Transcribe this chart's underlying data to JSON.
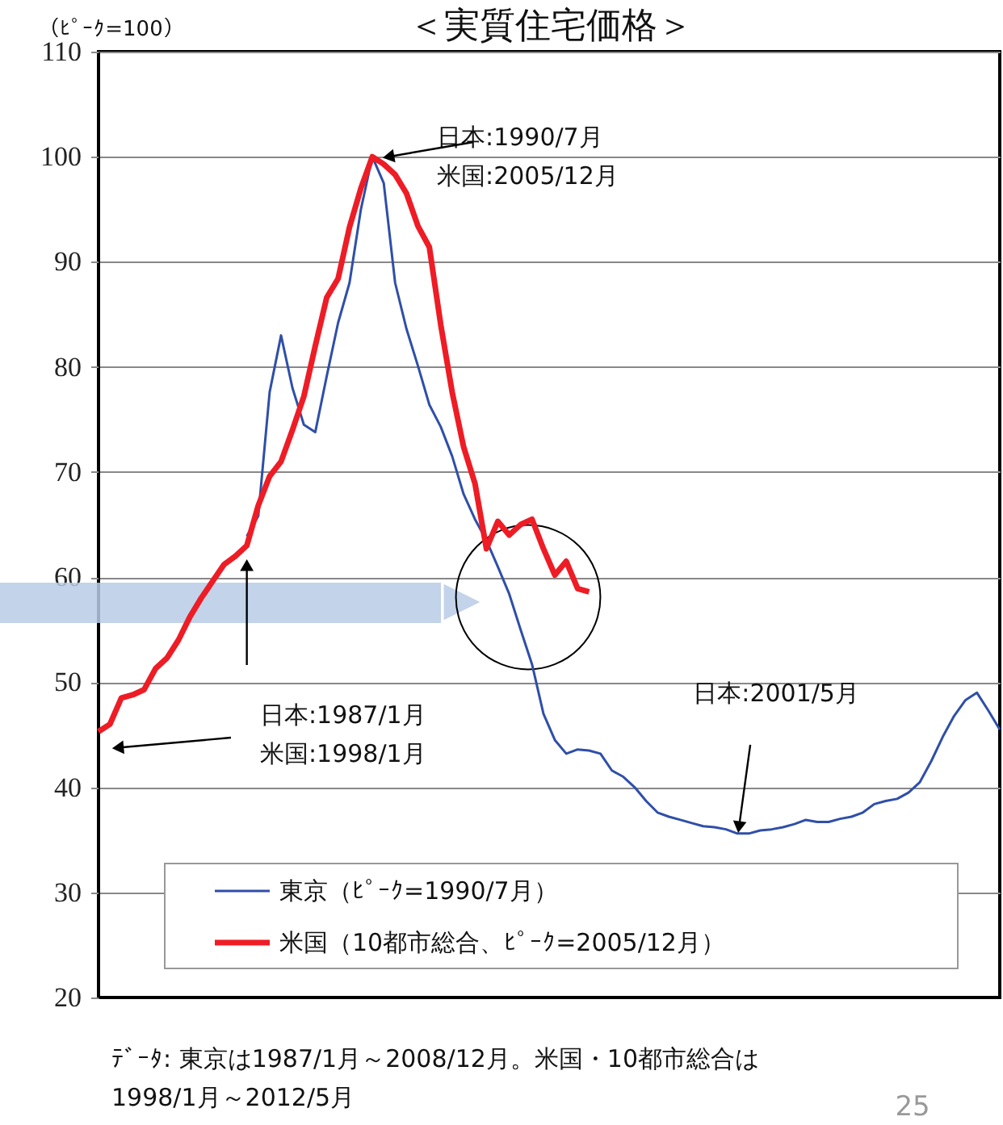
{
  "chart_data": {
    "type": "line",
    "title": "＜実質住宅価格＞",
    "ylabel": "（ﾋﾟｰｸ=100）",
    "categories": [
      null,
      null,
      null,
      null,
      null,
      null,
      null,
      null,
      null,
      null,
      null,
      null,
      null,
      null,
      null,
      null,
      null,
      null,
      null,
      null,
      null,
      null,
      null,
      null,
      null,
      null,
      null,
      null,
      null,
      null,
      null,
      null,
      null,
      null,
      null,
      null,
      null,
      null,
      null,
      null,
      null,
      null,
      null,
      null,
      null,
      null,
      null,
      null,
      null,
      null,
      null,
      null,
      null,
      null,
      null,
      null,
      null,
      null,
      null,
      null,
      null,
      null,
      null,
      null,
      null,
      null,
      null,
      null,
      null,
      null,
      null,
      null,
      null,
      null,
      null,
      null,
      null,
      null,
      null,
      null
    ],
    "ylim": [
      20,
      110
    ],
    "yticks": [
      20,
      30,
      40,
      50,
      60,
      70,
      80,
      90,
      100,
      110
    ],
    "tick_labels": "y",
    "grid": "y",
    "legend": "bottom",
    "series": [
      {
        "name": "東京（ﾋﾟｰｸ=1990/7月）",
        "color": "#2f4fa8",
        "values": [
          null,
          null,
          null,
          null,
          null,
          null,
          null,
          null,
          null,
          null,
          null,
          null,
          null,
          63.9,
          65.8,
          77.6,
          83.0,
          78.0,
          74.5,
          73.8,
          79.1,
          84.2,
          88.0,
          95.0,
          100,
          97.5,
          88.0,
          83.6,
          80.1,
          76.4,
          74.3,
          71.5,
          67.9,
          65.5,
          63.5,
          61.0,
          58.4,
          55.0,
          51.7,
          47.0,
          44.5,
          43.2,
          43.6,
          43.5,
          43.2,
          41.6,
          41.0,
          40.0,
          38.7,
          37.6,
          37.2,
          36.9,
          36.6,
          36.3,
          36.2,
          36.0,
          35.6,
          35.6,
          35.9,
          36.0,
          36.2,
          36.5,
          36.9,
          36.7,
          36.7,
          37.0,
          37.2,
          37.6,
          38.4,
          38.7,
          38.9,
          39.5,
          40.5,
          42.5,
          44.8,
          46.8,
          48.3,
          49.0,
          47.3,
          45.5
        ]
      },
      {
        "name": "米国（10都市総合、ﾋﾟｰｸ=2005/12月）",
        "color": "#ee1c25",
        "values": [
          45.3,
          46.0,
          48.5,
          48.8,
          49.3,
          51.3,
          52.3,
          54.0,
          56.2,
          58.0,
          59.6,
          61.2,
          62.0,
          63.0,
          66.8,
          69.6,
          71.0,
          74.0,
          77.2,
          82.0,
          86.6,
          88.4,
          93.3,
          97.0,
          100,
          99.3,
          98.3,
          96.5,
          93.4,
          91.4,
          84.0,
          77.6,
          72.4,
          68.9,
          62.7,
          65.3,
          64.0,
          65.0,
          65.5,
          62.7,
          60.2,
          61.5,
          58.9,
          58.6,
          null,
          null,
          null,
          null,
          null,
          null,
          null,
          null,
          null,
          null,
          null,
          null,
          null,
          null,
          null,
          null,
          null,
          null,
          null,
          null,
          null,
          null,
          null,
          null,
          null,
          null,
          null,
          null,
          null,
          null,
          null,
          null,
          null,
          null,
          null,
          null
        ]
      }
    ],
    "annotations": [
      "日本:1990/7月",
      "米国:2005/12月",
      "日本:1987/1月",
      "米国:1998/1月",
      "日本:2001/5月",
      "ﾃﾞｰﾀ: 東京は1987/1月～2008/12月。米国・10都市総合は\n1998/1月～2012/5月",
      "25"
    ]
  }
}
